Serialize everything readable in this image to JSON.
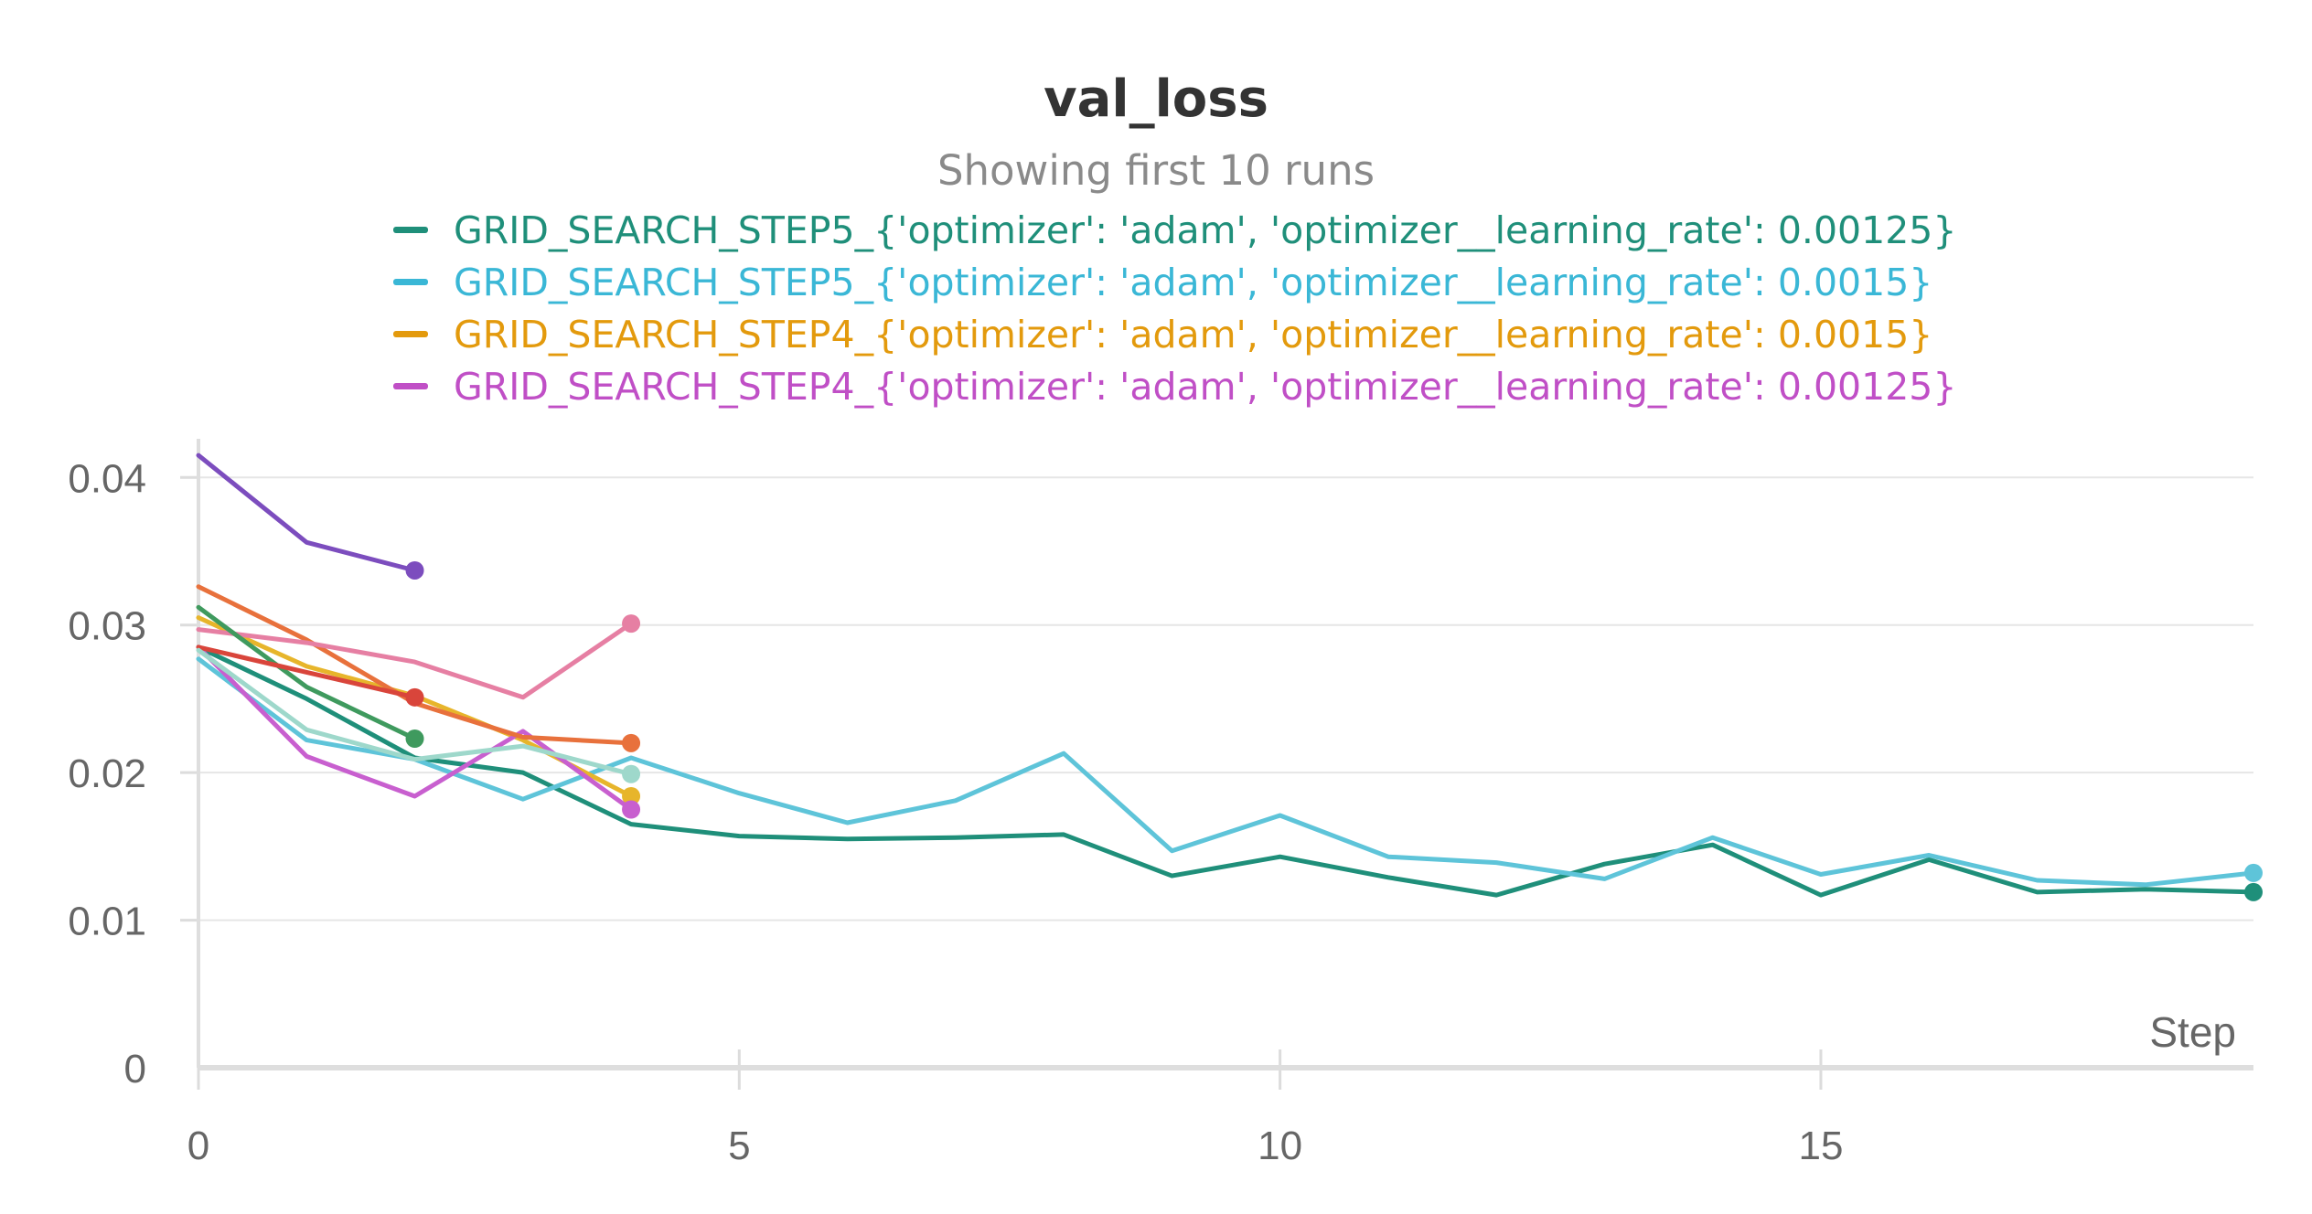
{
  "chart_data": {
    "type": "line",
    "title": "val_loss",
    "subtitle": "Showing first 10 runs",
    "xlabel": "Step",
    "ylabel": "",
    "xlim": [
      0,
      19
    ],
    "ylim": [
      0,
      0.042
    ],
    "xticks": [
      "0",
      "5",
      "10",
      "15"
    ],
    "yticks": [
      "0",
      "0.01",
      "0.02",
      "0.03",
      "0.04"
    ],
    "grid": true,
    "legend_position": "top",
    "legend": [
      {
        "label": "GRID_SEARCH_STEP5_{'optimizer': 'adam', 'optimizer__learning_rate': 0.00125}",
        "color": "#1f8f7a"
      },
      {
        "label": "GRID_SEARCH_STEP5_{'optimizer': 'adam', 'optimizer__learning_rate': 0.0015}",
        "color": "#3ab7d6"
      },
      {
        "label": "GRID_SEARCH_STEP4_{'optimizer': 'adam', 'optimizer__learning_rate': 0.0015}",
        "color": "#e39a0d"
      },
      {
        "label": "GRID_SEARCH_STEP4_{'optimizer': 'adam', 'optimizer__learning_rate': 0.00125}",
        "color": "#c04fc6"
      }
    ],
    "series": [
      {
        "name": "GRID_SEARCH_STEP5_{'optimizer': 'adam', 'optimizer__learning_rate': 0.00125}",
        "color": "#1f8f7a",
        "x": [
          0,
          1,
          2,
          3,
          4,
          5,
          6,
          7,
          8,
          9,
          10,
          11,
          12,
          13,
          14,
          15,
          16,
          17,
          18,
          19
        ],
        "y": [
          0.0285,
          0.025,
          0.021,
          0.02,
          0.0165,
          0.0157,
          0.0155,
          0.0156,
          0.0158,
          0.013,
          0.0143,
          0.0129,
          0.0117,
          0.0138,
          0.0151,
          0.0117,
          0.0141,
          0.0119,
          0.0121,
          0.0119
        ]
      },
      {
        "name": "GRID_SEARCH_STEP5_{'optimizer': 'adam', 'optimizer__learning_rate': 0.0015}",
        "color": "#5ec4d9",
        "x": [
          0,
          1,
          2,
          3,
          4,
          5,
          6,
          7,
          8,
          9,
          10,
          11,
          12,
          13,
          14,
          15,
          16,
          17,
          18,
          19
        ],
        "y": [
          0.0277,
          0.0222,
          0.0209,
          0.0182,
          0.021,
          0.0186,
          0.0166,
          0.0181,
          0.0213,
          0.0147,
          0.0171,
          0.0143,
          0.0139,
          0.0128,
          0.0156,
          0.0131,
          0.0144,
          0.0127,
          0.0124,
          0.0132
        ]
      },
      {
        "name": "GRID_SEARCH_STEP4_{'optimizer': 'adam', 'optimizer__learning_rate': 0.0015}",
        "color": "#e7b52b",
        "x": [
          0,
          1,
          2,
          3,
          4
        ],
        "y": [
          0.0305,
          0.0272,
          0.0252,
          0.0222,
          0.0184
        ]
      },
      {
        "name": "GRID_SEARCH_STEP4_{'optimizer': 'adam', 'optimizer__learning_rate': 0.00125}",
        "color": "#c85fcf",
        "x": [
          0,
          1,
          2,
          3,
          4
        ],
        "y": [
          0.0285,
          0.0211,
          0.0184,
          0.0228,
          0.0175
        ]
      },
      {
        "color": "#7c4dbe",
        "x": [
          0,
          1,
          2
        ],
        "y": [
          0.0415,
          0.0356,
          0.0337
        ]
      },
      {
        "color": "#e8713c",
        "x": [
          0,
          1,
          2,
          3,
          4
        ],
        "y": [
          0.0326,
          0.029,
          0.0247,
          0.0224,
          0.022
        ]
      },
      {
        "color": "#e67fa3",
        "x": [
          0,
          1,
          2,
          3,
          4
        ],
        "y": [
          0.0297,
          0.0288,
          0.0275,
          0.0251,
          0.0301
        ]
      },
      {
        "color": "#3f9a5e",
        "x": [
          0,
          1,
          2
        ],
        "y": [
          0.0312,
          0.0258,
          0.0223
        ]
      },
      {
        "color": "#d9453b",
        "x": [
          0,
          1,
          2
        ],
        "y": [
          0.0285,
          0.0268,
          0.0251
        ]
      },
      {
        "color": "#9ed8cb",
        "x": [
          0,
          1,
          2,
          3,
          4
        ],
        "y": [
          0.0283,
          0.0229,
          0.0209,
          0.0218,
          0.0199
        ]
      }
    ]
  }
}
